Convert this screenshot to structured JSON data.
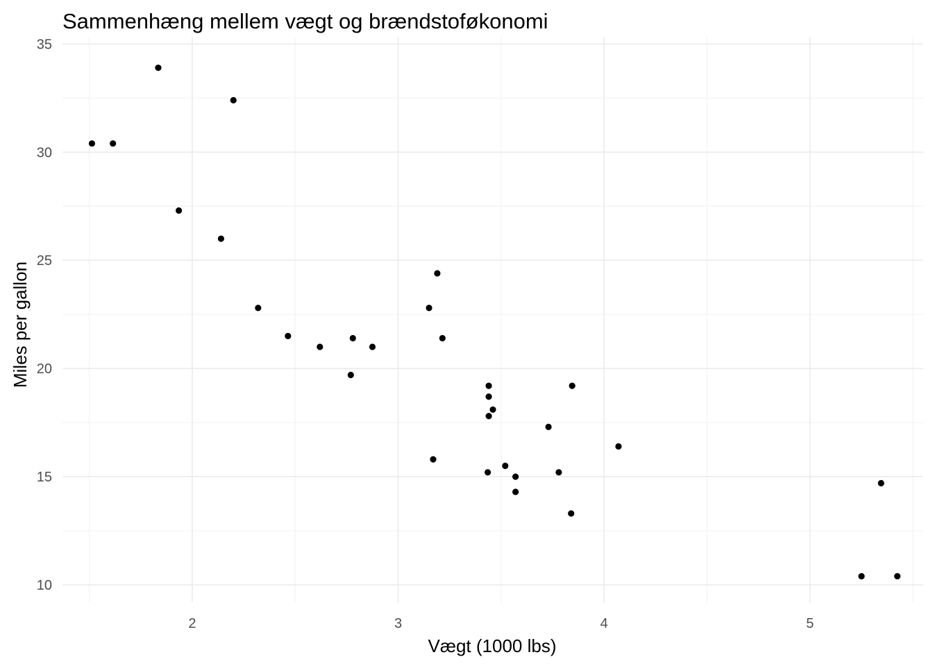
{
  "chart_data": {
    "type": "scatter",
    "title": "Sammenhæng mellem vægt og brændstoføkonomi",
    "xlabel": "Vægt (1000 lbs)",
    "ylabel": "Miles per gallon",
    "xlim": [
      1.37,
      5.55
    ],
    "ylim": [
      9.2,
      35.3
    ],
    "x_ticks": [
      2,
      3,
      4,
      5
    ],
    "y_ticks": [
      10,
      15,
      20,
      25,
      30,
      35
    ],
    "x_tick_labels": [
      "2",
      "3",
      "4",
      "5"
    ],
    "y_tick_labels": [
      "10",
      "15",
      "20",
      "25",
      "30",
      "35"
    ],
    "x_minor": [
      1.5,
      2.5,
      3.5,
      4.5,
      5.5
    ],
    "y_minor": [
      12.5,
      17.5,
      22.5,
      27.5,
      32.5
    ],
    "grid": true,
    "legend": "none",
    "point_color": "#000000",
    "series": [
      {
        "x": [
          2.62,
          2.875,
          2.32,
          3.215,
          3.44,
          3.46,
          3.57,
          3.19,
          3.15,
          3.44,
          3.44,
          4.07,
          3.73,
          3.78,
          5.25,
          5.424,
          5.345,
          2.2,
          1.615,
          1.835,
          2.465,
          3.52,
          3.435,
          3.84,
          3.845,
          1.935,
          2.14,
          1.513,
          3.17,
          2.77,
          3.57,
          2.78
        ],
        "y": [
          21.0,
          21.0,
          22.8,
          21.4,
          18.7,
          18.1,
          14.3,
          24.4,
          22.8,
          19.2,
          17.8,
          16.4,
          17.3,
          15.2,
          10.4,
          10.4,
          14.7,
          32.4,
          30.4,
          33.9,
          21.5,
          15.5,
          15.2,
          13.3,
          19.2,
          27.3,
          26.0,
          30.4,
          15.8,
          19.7,
          15.0,
          21.4
        ]
      }
    ]
  }
}
